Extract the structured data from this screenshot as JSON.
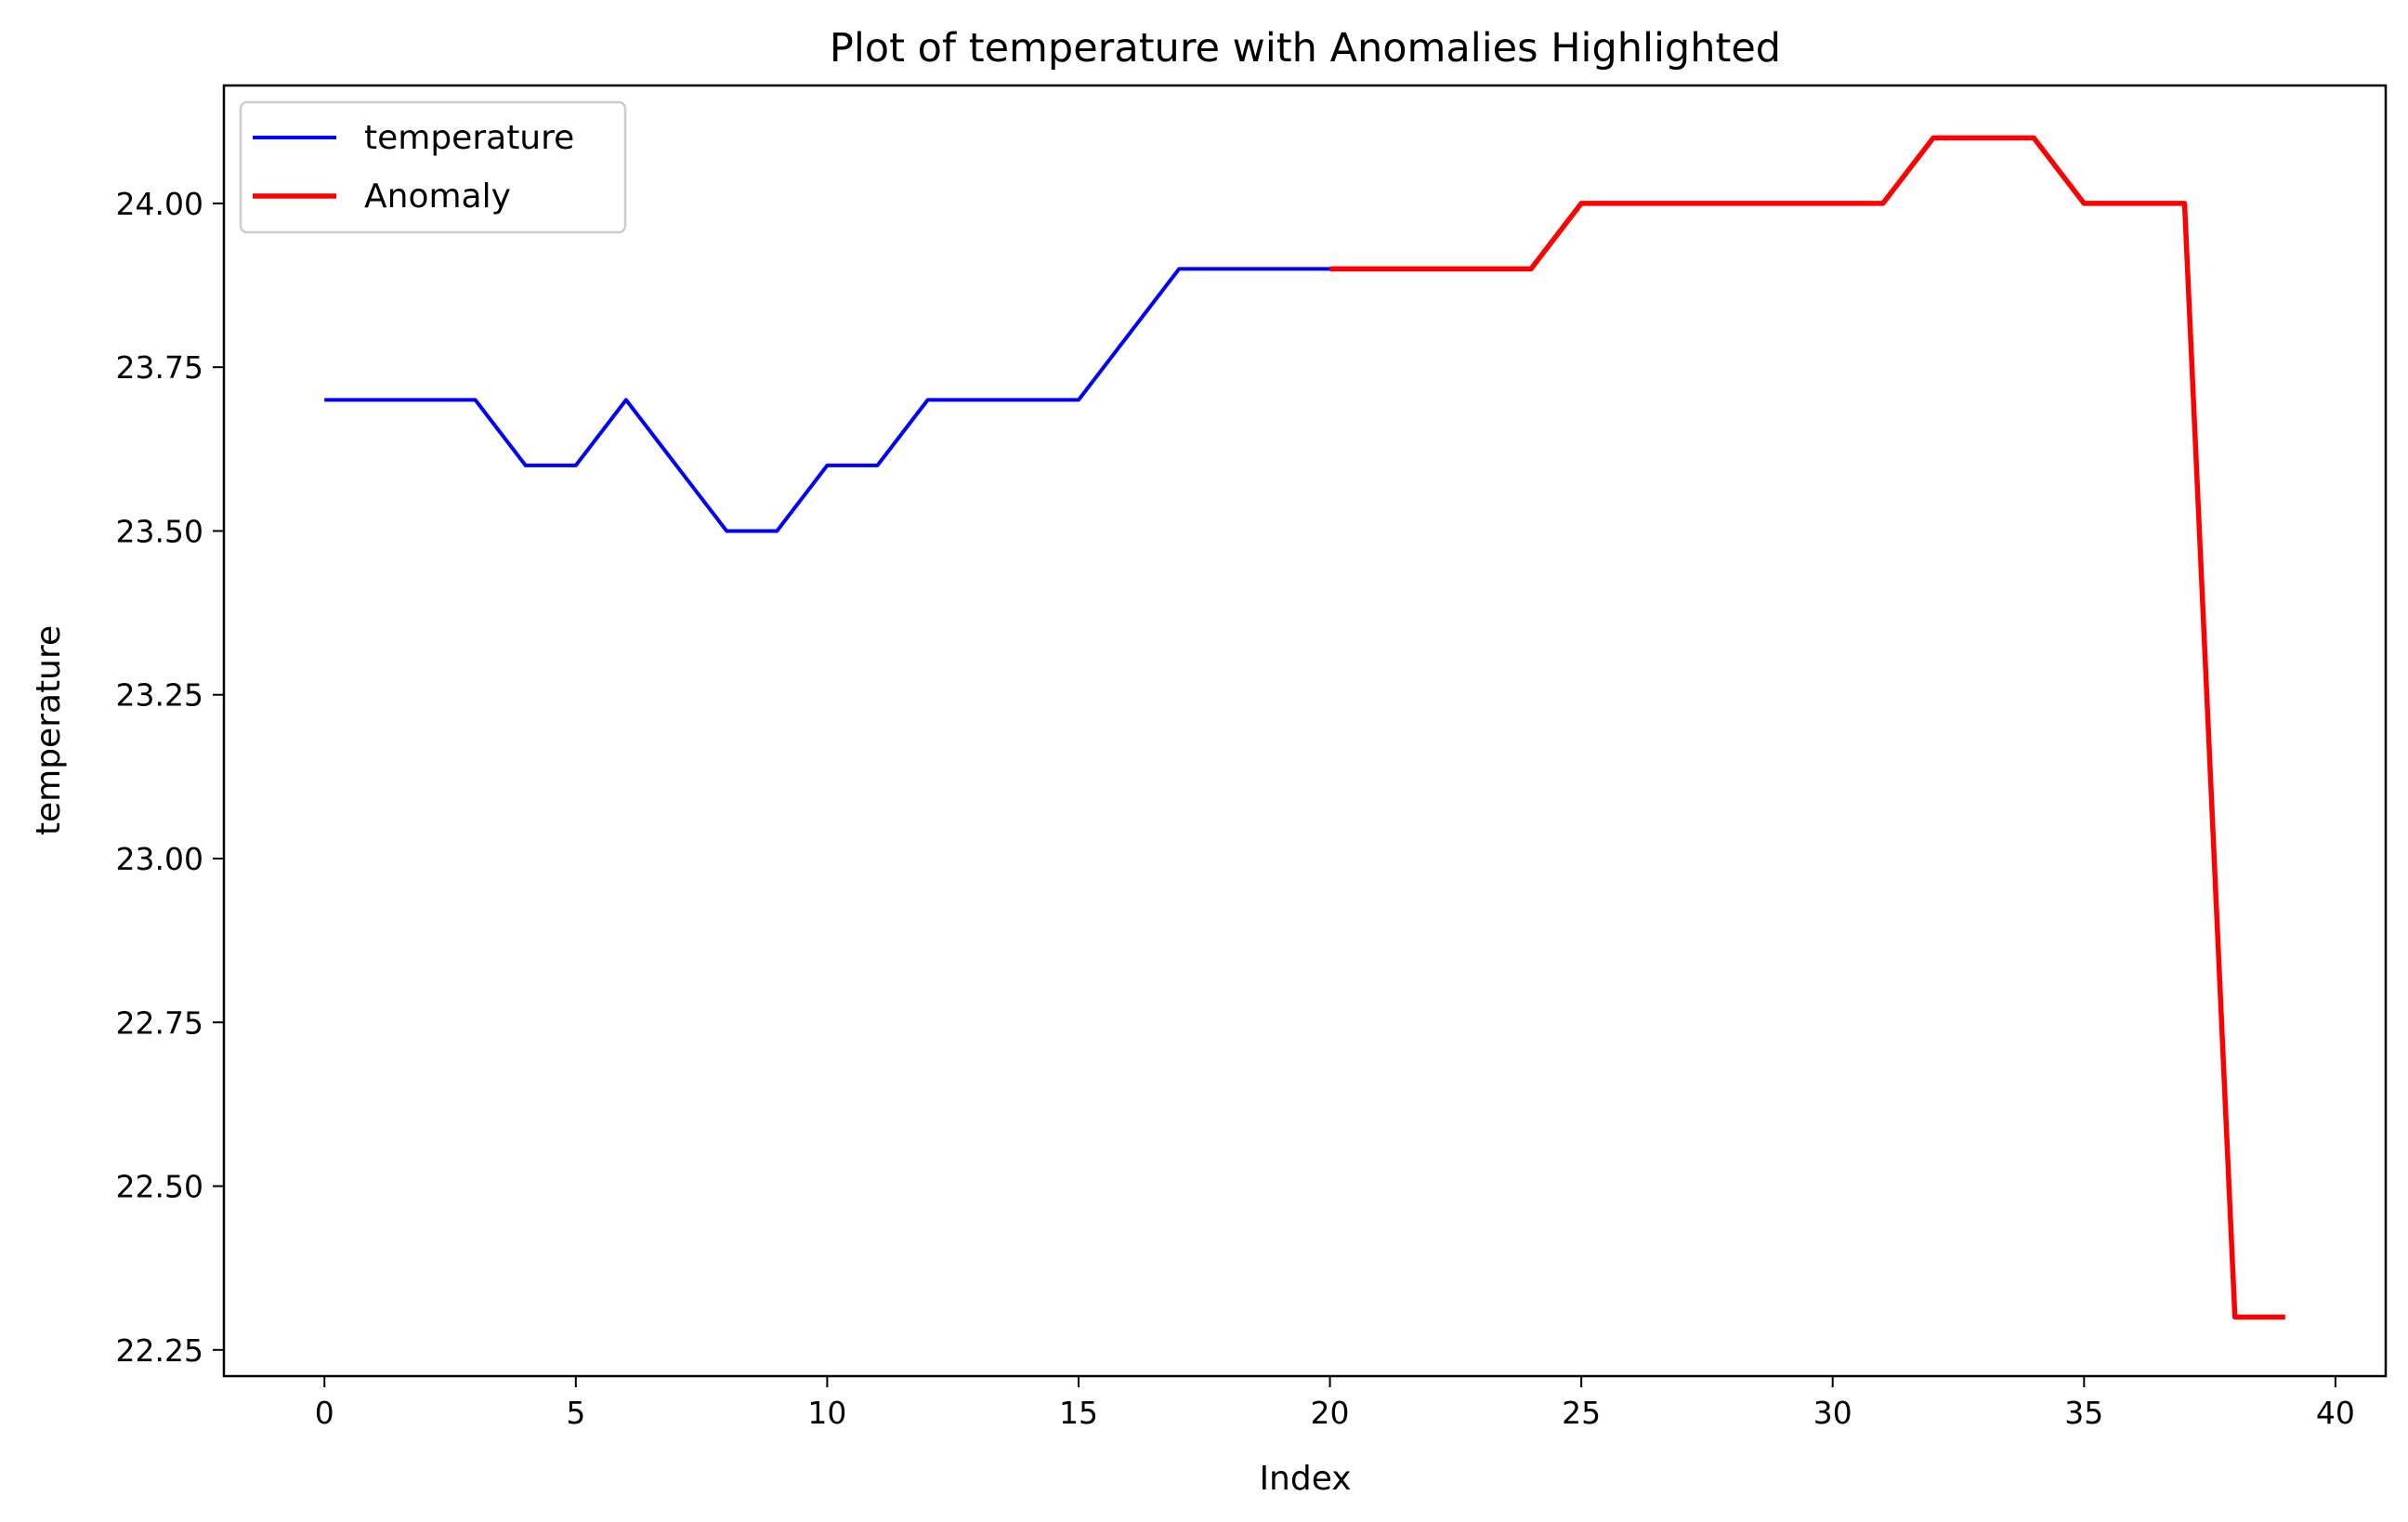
{
  "chart_data": {
    "type": "line",
    "title": "Plot of temperature with Anomalies Highlighted",
    "xlabel": "Index",
    "ylabel": "temperature",
    "xlim": [
      -2,
      41
    ],
    "ylim": [
      22.21,
      24.18
    ],
    "x_ticks": [
      0,
      5,
      10,
      15,
      20,
      25,
      30,
      35,
      40
    ],
    "y_ticks": [
      22.25,
      22.5,
      22.75,
      23.0,
      23.25,
      23.5,
      23.75,
      24.0
    ],
    "x_tick_labels": [
      "0",
      "5",
      "10",
      "15",
      "20",
      "25",
      "30",
      "35",
      "40"
    ],
    "y_tick_labels": [
      "22.25",
      "22.50",
      "22.75",
      "23.00",
      "23.25",
      "23.50",
      "23.75",
      "24.00"
    ],
    "grid": false,
    "legend_position": "top-left",
    "series": [
      {
        "name": "temperature",
        "color": "#0000ff",
        "x": [
          0,
          1,
          2,
          3,
          4,
          5,
          6,
          7,
          8,
          9,
          10,
          11,
          12,
          13,
          14,
          15,
          16,
          17,
          18,
          19,
          20
        ],
        "values": [
          23.7,
          23.7,
          23.7,
          23.7,
          23.6,
          23.6,
          23.7,
          23.6,
          23.5,
          23.5,
          23.6,
          23.6,
          23.7,
          23.7,
          23.7,
          23.7,
          23.8,
          23.9,
          23.9,
          23.9,
          23.9
        ]
      },
      {
        "name": "Anomaly",
        "color": "#ff0000",
        "x": [
          20,
          21,
          22,
          23,
          24,
          25,
          26,
          27,
          28,
          29,
          30,
          31,
          32,
          33,
          34,
          35,
          36,
          37,
          38,
          39
        ],
        "values": [
          23.9,
          23.9,
          23.9,
          23.9,
          23.9,
          24.0,
          24.0,
          24.0,
          24.0,
          24.0,
          24.0,
          24.0,
          24.1,
          24.1,
          24.1,
          24.0,
          24.0,
          24.0,
          22.3,
          22.3
        ]
      }
    ]
  }
}
